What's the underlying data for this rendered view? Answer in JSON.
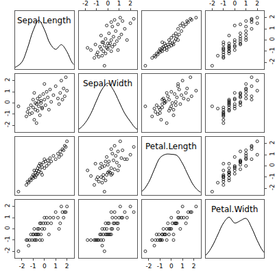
{
  "chart_data": {
    "type": "scatter_matrix",
    "color": "#000000",
    "marker": "open circle",
    "grid": false,
    "xlim": [
      -2.6,
      2.6
    ],
    "ylim": [
      -2.6,
      2.6
    ],
    "xticks": [
      -2,
      -1,
      0,
      1,
      2
    ],
    "yticks": [
      -2,
      -1,
      0,
      1,
      2
    ],
    "density_ylim": [
      0,
      0.5
    ],
    "series": [
      {
        "name": "Sepal.Length",
        "values": [
          -2.3,
          -1.6,
          -1.5,
          -1.4,
          -1.3,
          -1.2,
          -1.1,
          -1.0,
          -1.0,
          -0.9,
          -0.8,
          -0.8,
          -0.7,
          -0.7,
          -0.6,
          -0.6,
          -0.5,
          -0.5,
          -0.4,
          -0.4,
          -0.3,
          -0.3,
          -0.2,
          -0.1,
          0.0,
          0.1,
          0.2,
          0.3,
          0.4,
          0.5,
          0.6,
          0.8,
          1.0,
          1.2,
          1.4,
          1.5,
          1.6,
          1.7,
          1.8,
          2.0,
          -0.9,
          -0.2,
          0.0,
          1.3,
          1.9
        ],
        "density": {
          "x": [
            -3,
            -2.5,
            -2,
            -1.5,
            -1,
            -0.5,
            0,
            0.5,
            1,
            1.5,
            2,
            2.5,
            3
          ],
          "values": [
            0.0,
            0.02,
            0.06,
            0.18,
            0.33,
            0.42,
            0.34,
            0.22,
            0.17,
            0.21,
            0.15,
            0.05,
            0.01
          ]
        }
      },
      {
        "name": "Sepal.Width",
        "values": [
          -0.3,
          -1.2,
          -0.8,
          -0.5,
          -1.0,
          -0.2,
          -0.9,
          -0.4,
          0.3,
          -1.5,
          -0.6,
          0.0,
          -0.1,
          -1.8,
          0.4,
          -0.7,
          0.1,
          -0.3,
          0.6,
          -1.1,
          0.2,
          0.0,
          -0.5,
          0.8,
          0.3,
          -0.2,
          1.0,
          0.5,
          -0.6,
          1.2,
          0.1,
          0.7,
          1.5,
          0.4,
          0.9,
          2.0,
          0.3,
          1.3,
          0.6,
          1.1,
          0.9,
          -0.4,
          1.7,
          -0.1,
          2.3
        ],
        "density": {
          "x": [
            -3,
            -2.5,
            -2,
            -1.5,
            -1,
            -0.5,
            0,
            0.5,
            1,
            1.5,
            2,
            2.5,
            3
          ],
          "values": [
            0.01,
            0.03,
            0.08,
            0.16,
            0.27,
            0.37,
            0.42,
            0.36,
            0.26,
            0.16,
            0.09,
            0.03,
            0.01
          ]
        }
      },
      {
        "name": "Petal.Length",
        "values": [
          -2.3,
          -1.7,
          -1.4,
          -1.5,
          -1.2,
          -1.3,
          -1.0,
          -1.1,
          -0.8,
          -0.9,
          -1.0,
          -0.6,
          -0.8,
          -0.4,
          -0.7,
          -0.2,
          -0.5,
          0.0,
          -0.3,
          0.2,
          -0.6,
          0.1,
          -0.1,
          0.3,
          -0.2,
          0.4,
          0.0,
          0.5,
          0.2,
          0.7,
          0.4,
          0.9,
          0.6,
          1.1,
          1.3,
          1.0,
          1.5,
          1.4,
          1.8,
          2.2,
          -0.4,
          -0.8,
          0.6,
          0.8,
          1.7
        ],
        "density": {
          "x": [
            -3,
            -2.5,
            -2,
            -1.5,
            -1,
            -0.5,
            0,
            0.5,
            1,
            1.5,
            2,
            2.5,
            3
          ],
          "values": [
            0.01,
            0.04,
            0.11,
            0.22,
            0.32,
            0.35,
            0.35,
            0.34,
            0.27,
            0.17,
            0.08,
            0.03,
            0.01
          ]
        }
      },
      {
        "name": "Petal.Width",
        "values": [
          -2.0,
          -1.0,
          -1.0,
          -1.5,
          -1.0,
          -0.5,
          -1.0,
          -0.5,
          -0.5,
          -1.0,
          -1.0,
          -0.5,
          -0.5,
          -1.0,
          0.0,
          -0.5,
          -0.5,
          0.0,
          0.5,
          -1.0,
          -0.5,
          0.5,
          0.0,
          0.5,
          0.0,
          0.5,
          1.0,
          0.5,
          -0.5,
          1.0,
          0.5,
          1.0,
          1.5,
          1.0,
          0.5,
          2.0,
          1.5,
          1.0,
          1.5,
          2.0,
          0.0,
          -1.0,
          1.0,
          0.0,
          1.5
        ],
        "density": {
          "x": [
            -3,
            -2.5,
            -2,
            -1.5,
            -1,
            -0.5,
            0,
            0.5,
            1,
            1.5,
            2,
            2.5,
            3
          ],
          "values": [
            0.0,
            0.03,
            0.1,
            0.2,
            0.3,
            0.35,
            0.3,
            0.32,
            0.34,
            0.26,
            0.15,
            0.06,
            0.01
          ]
        }
      }
    ]
  }
}
